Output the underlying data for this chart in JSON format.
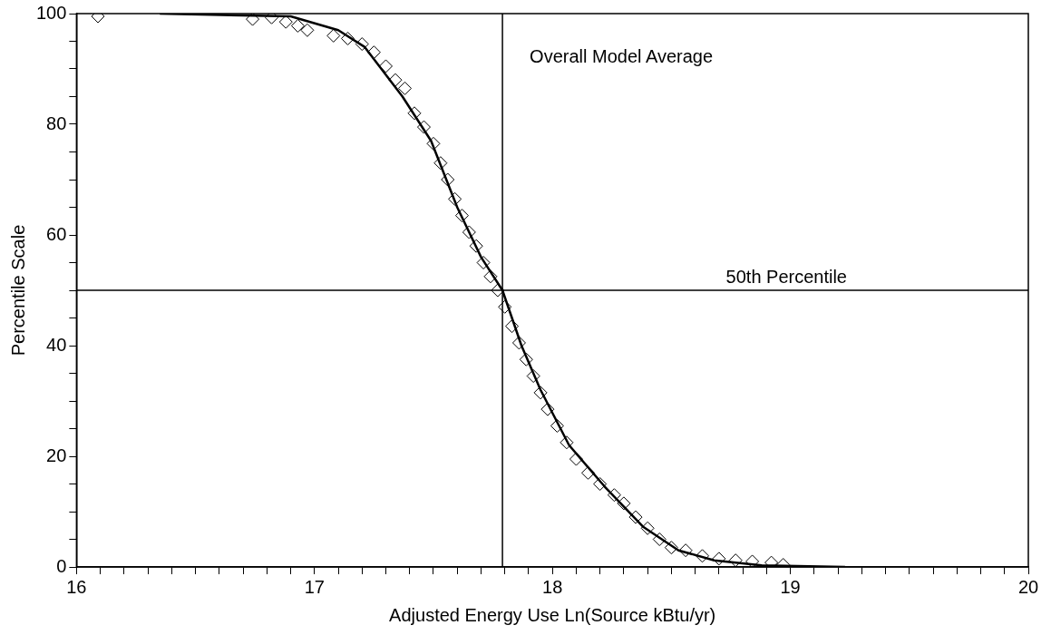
{
  "chart_data": {
    "type": "scatter",
    "xlabel": "Adjusted Energy Use Ln(Source kBtu/yr)",
    "ylabel": "Percentile Scale",
    "xlim": [
      16,
      20
    ],
    "ylim": [
      0,
      100
    ],
    "xticks": [
      16,
      {
        "value": 16.1,
        "label": null
      },
      {
        "value": 16.2,
        "label": null
      },
      {
        "value": 16.3,
        "label": null
      },
      {
        "value": 16.4,
        "label": null
      },
      {
        "value": 16.5,
        "label": null
      },
      {
        "value": 16.6,
        "label": null
      },
      {
        "value": 16.7,
        "label": null
      },
      {
        "value": 16.8,
        "label": null
      },
      {
        "value": 16.9,
        "label": null
      },
      17,
      {
        "value": 17.1,
        "label": null
      },
      {
        "value": 17.2,
        "label": null
      },
      {
        "value": 17.3,
        "label": null
      },
      {
        "value": 17.4,
        "label": null
      },
      {
        "value": 17.5,
        "label": null
      },
      {
        "value": 17.6,
        "label": null
      },
      {
        "value": 17.7,
        "label": null
      },
      {
        "value": 17.8,
        "label": null
      },
      {
        "value": 17.9,
        "label": null
      },
      18,
      {
        "value": 18.1,
        "label": null
      },
      {
        "value": 18.2,
        "label": null
      },
      {
        "value": 18.3,
        "label": null
      },
      {
        "value": 18.4,
        "label": null
      },
      {
        "value": 18.5,
        "label": null
      },
      {
        "value": 18.6,
        "label": null
      },
      {
        "value": 18.7,
        "label": null
      },
      {
        "value": 18.8,
        "label": null
      },
      {
        "value": 18.9,
        "label": null
      },
      19,
      {
        "value": 19.1,
        "label": null
      },
      {
        "value": 19.2,
        "label": null
      },
      {
        "value": 19.3,
        "label": null
      },
      {
        "value": 19.4,
        "label": null
      },
      {
        "value": 19.5,
        "label": null
      },
      {
        "value": 19.6,
        "label": null
      },
      {
        "value": 19.7,
        "label": null
      },
      {
        "value": 19.8,
        "label": null
      },
      {
        "value": 19.9,
        "label": null
      },
      20
    ],
    "yticks": [
      0,
      {
        "value": 5,
        "label": null
      },
      {
        "value": 10,
        "label": null
      },
      {
        "value": 15,
        "label": null
      },
      20,
      {
        "value": 25,
        "label": null
      },
      {
        "value": 30,
        "label": null
      },
      {
        "value": 35,
        "label": null
      },
      40,
      {
        "value": 45,
        "label": null
      },
      {
        "value": 50,
        "label": null
      },
      {
        "value": 55,
        "label": null
      },
      60,
      {
        "value": 65,
        "label": null
      },
      {
        "value": 70,
        "label": null
      },
      {
        "value": 75,
        "label": null
      },
      80,
      {
        "value": 85,
        "label": null
      },
      {
        "value": 90,
        "label": null
      },
      {
        "value": 95,
        "label": null
      },
      100
    ],
    "grid": false,
    "legend": false,
    "marker": "diamond",
    "series": [
      {
        "type": "scatter",
        "color": "#000000",
        "x": [
          16.09,
          16.74,
          16.82,
          16.88,
          16.93,
          16.97,
          17.08,
          17.14,
          17.2,
          17.25,
          17.3,
          17.34,
          17.38,
          17.42,
          17.46,
          17.5,
          17.53,
          17.56,
          17.59,
          17.62,
          17.65,
          17.68,
          17.71,
          17.74,
          17.77,
          17.8,
          17.83,
          17.86,
          17.89,
          17.92,
          17.95,
          17.98,
          18.02,
          18.06,
          18.1,
          18.15,
          18.2,
          18.26,
          18.3,
          18.35,
          18.4,
          18.45,
          18.5,
          18.56,
          18.63,
          18.7,
          18.77,
          18.84,
          18.92,
          18.97
        ],
        "values": [
          99.5,
          99,
          99.3,
          98.5,
          97.8,
          97,
          96,
          95.5,
          94.5,
          93,
          90.5,
          88,
          86.5,
          82,
          79.5,
          76.5,
          73,
          70,
          66.5,
          63.5,
          60.5,
          58,
          55,
          52.5,
          50,
          47,
          43.5,
          40.5,
          37.5,
          34.5,
          31.5,
          28.5,
          25.5,
          22.5,
          19.5,
          17,
          15,
          13,
          11.5,
          9,
          7,
          5,
          3.5,
          3,
          2,
          1.5,
          1.2,
          1,
          0.8,
          0.4
        ]
      },
      {
        "type": "line",
        "color": "#000000",
        "marker": "none",
        "x": [
          16.35,
          16.9,
          17.1,
          17.21,
          17.37,
          17.49,
          17.6,
          17.7,
          17.79,
          17.87,
          17.95,
          18.07,
          18.22,
          18.38,
          18.53,
          18.68,
          18.88,
          19.23
        ],
        "values": [
          100,
          99.5,
          97,
          94,
          85,
          77,
          65,
          56,
          50,
          40,
          32,
          22,
          14.5,
          7.3,
          3,
          1.2,
          0.3,
          0
        ]
      }
    ],
    "ref_lines": [
      {
        "axis": "x",
        "value": 17.79,
        "label": "Overall Model Average",
        "color": "#000000"
      },
      {
        "axis": "y",
        "value": 50,
        "label": "50th Percentile",
        "color": "#000000"
      }
    ]
  }
}
